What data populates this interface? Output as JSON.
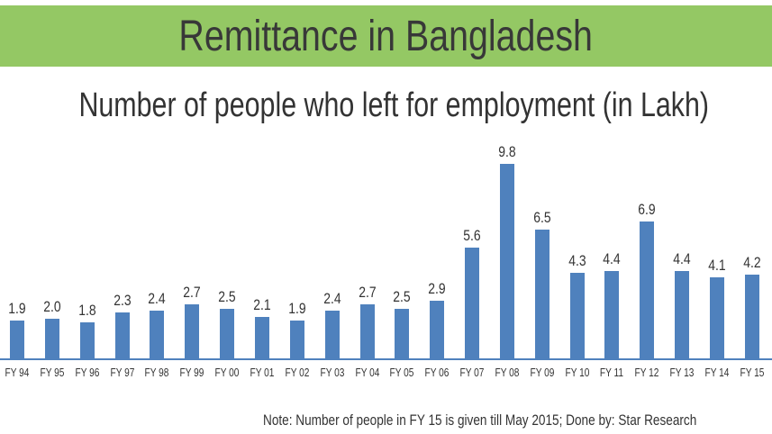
{
  "banner": {
    "title": "Remittance in Bangladesh",
    "color": "#94c864"
  },
  "chart_data": {
    "type": "bar",
    "title": "Number of people who left for employment (in Lakh)",
    "xlabel": "",
    "ylabel": "",
    "categories": [
      "FY 94",
      "FY 95",
      "FY 96",
      "FY 97",
      "FY 98",
      "FY 99",
      "FY 00",
      "FY 01",
      "FY 02",
      "FY 03",
      "FY 04",
      "FY 05",
      "FY 06",
      "FY 07",
      "FY 08",
      "FY 09",
      "FY 10",
      "FY 11",
      "FY 12",
      "FY 13",
      "FY 14",
      "FY 15"
    ],
    "values": [
      1.9,
      2.0,
      1.8,
      2.3,
      2.4,
      2.7,
      2.5,
      2.1,
      1.9,
      2.4,
      2.7,
      2.5,
      2.9,
      5.6,
      9.8,
      6.5,
      4.3,
      4.4,
      6.9,
      4.4,
      4.1,
      4.2
    ],
    "labels": [
      "1.9",
      "2.0",
      "1.8",
      "2.3",
      "2.4",
      "2.7",
      "2.5",
      "2.1",
      "1.9",
      "2.4",
      "2.7",
      "2.5",
      "2.9",
      "5.6",
      "9.8",
      "6.5",
      "4.3",
      "4.4",
      "6.9",
      "4.4",
      "4.1",
      "4.2"
    ],
    "ylim": [
      0,
      10
    ],
    "grid": false,
    "legend": "none",
    "bar_color": "#4f81bd",
    "data_labels": true
  },
  "footer": {
    "note": "Note: Number of people in FY 15 is given till May 2015;     Done by: Star Research"
  }
}
